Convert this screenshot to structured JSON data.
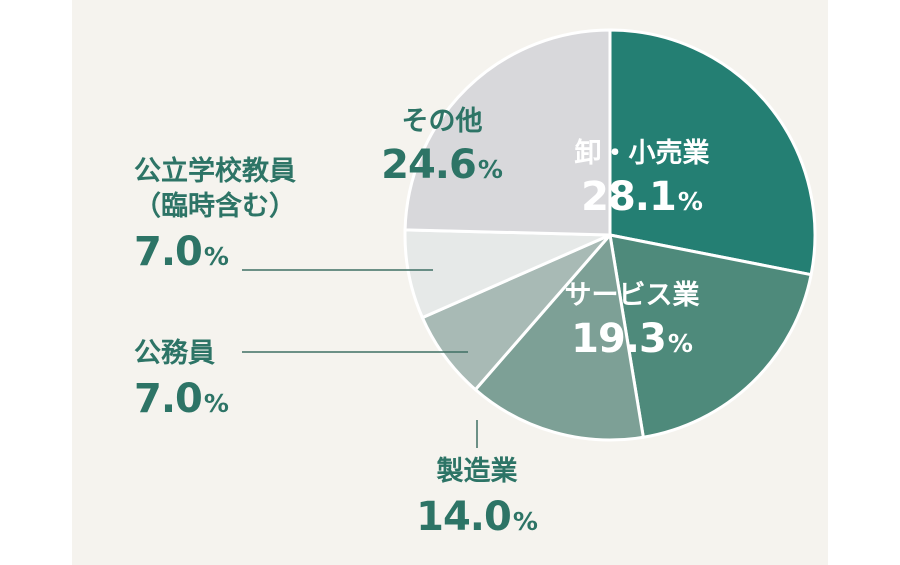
{
  "chart_data": {
    "type": "pie",
    "start_angle_deg": 0,
    "direction": "clockwise",
    "unit": "%",
    "slices": [
      {
        "label": "卸・小売業",
        "value": 28.1,
        "color": "#247f73",
        "value_text": "28.1"
      },
      {
        "label": "サービス業",
        "value": 19.3,
        "color": "#4e8a7b",
        "value_text": "19.3"
      },
      {
        "label": "製造業",
        "value": 14.0,
        "color": "#7da096",
        "value_text": "14.0"
      },
      {
        "label": "公務員",
        "value": 7.0,
        "color": "#a8bab5",
        "value_text": "7.0"
      },
      {
        "label_lines": [
          "公立学校教員",
          "（臨時含む）"
        ],
        "value": 7.0,
        "color": "#e6e9e8",
        "value_text": "7.0"
      },
      {
        "label": "その他",
        "value": 24.6,
        "color": "#d8d8db",
        "value_text": "24.6"
      }
    ],
    "label_color": "#2d7466",
    "leader_color": "#3f6f64",
    "slice_border_color": "#ffffff"
  }
}
